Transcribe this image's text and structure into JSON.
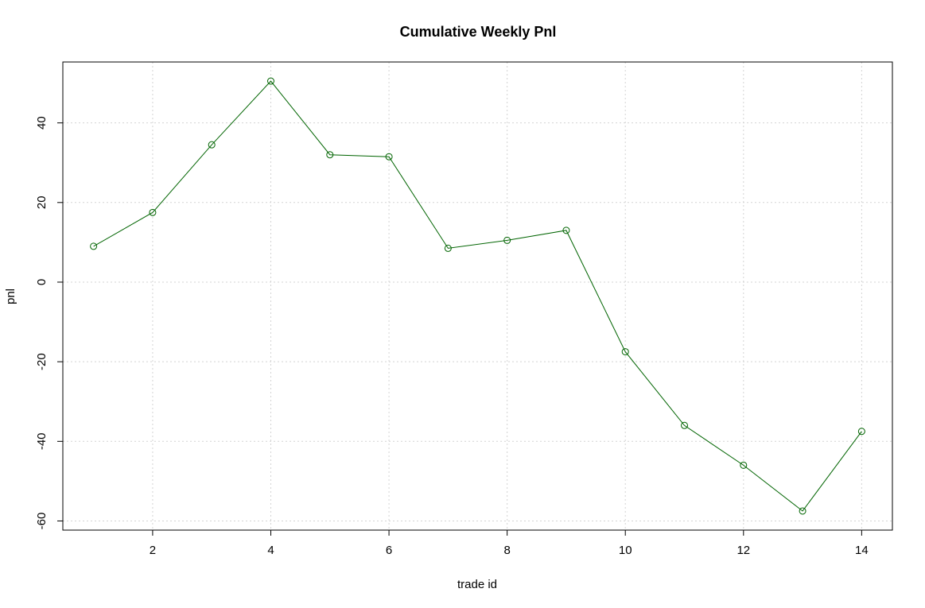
{
  "chart_data": {
    "type": "line",
    "title": "Cumulative Weekly Pnl",
    "xlabel": "trade id",
    "ylabel": "pnl",
    "x": [
      1,
      2,
      3,
      4,
      5,
      6,
      7,
      8,
      9,
      10,
      11,
      12,
      13,
      14
    ],
    "series": [
      {
        "values": [
          9,
          17.5,
          34.5,
          50.5,
          32,
          31.5,
          8.5,
          10.5,
          13,
          -17.5,
          -36,
          -46,
          -57.5,
          -37.5
        ],
        "color": "#006400",
        "marker": "open-circle"
      }
    ],
    "xlim": [
      0.48,
      14.52
    ],
    "ylim": [
      -62.3,
      55.3
    ],
    "xticks": [
      2,
      4,
      6,
      8,
      10,
      12,
      14
    ],
    "xtick_labels": [
      "2",
      "4",
      "6",
      "8",
      "10",
      "12",
      "14"
    ],
    "yticks": [
      -60,
      -40,
      -20,
      0,
      20,
      40
    ],
    "ytick_labels": [
      "-60",
      "-40",
      "-20",
      "0",
      "20",
      "40"
    ],
    "grid": true,
    "grid_color": "#d3d3d3"
  }
}
